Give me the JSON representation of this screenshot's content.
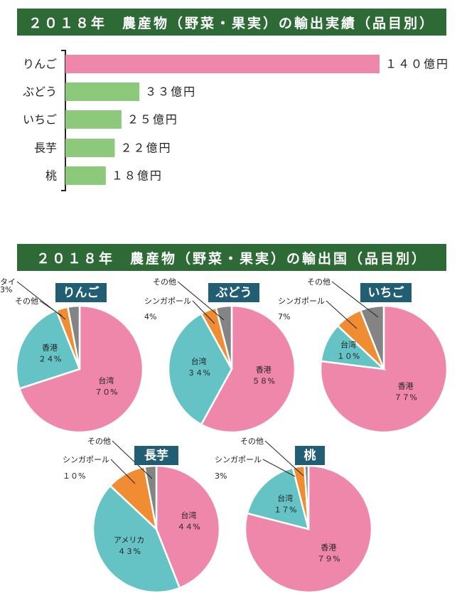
{
  "bar_title": "２０１８年　農産物（野菜・果実）の輸出実績（品目別）",
  "pie_title": "２０１８年　農産物（野菜・果実）の輸出国（品目別）",
  "colors": {
    "banner": "#2e6a35",
    "bar": "#8cc97a",
    "bar_top": "#ee87a9",
    "pink": "#ee87a9",
    "teal": "#65c3c6",
    "orange": "#f08c32",
    "gray": "#848484",
    "chip": "#215e74"
  },
  "chart_data": [
    {
      "type": "bar",
      "orientation": "horizontal",
      "categories": [
        "りんご",
        "ぶどう",
        "いちご",
        "長芋",
        "桃"
      ],
      "values": [
        140,
        33,
        25,
        22,
        18
      ],
      "value_labels": [
        "１４０億円",
        "３３億円",
        "２５億円",
        "２２億円",
        "１８億円"
      ],
      "unit": "億円"
    },
    {
      "type": "pie",
      "title": "りんご",
      "slices": [
        {
          "label": "台湾",
          "value": 70,
          "pct": "７０%",
          "color": "pink",
          "inside": true
        },
        {
          "label": "香港",
          "value": 24,
          "pct": "２４%",
          "color": "teal",
          "inside": true
        },
        {
          "label": "タイ",
          "value": 3,
          "pct": "3%",
          "color": "orange",
          "inside": false
        },
        {
          "label": "その他",
          "value": 3,
          "pct": "",
          "color": "gray",
          "inside": false
        }
      ]
    },
    {
      "type": "pie",
      "title": "ぶどう",
      "slices": [
        {
          "label": "香港",
          "value": 58,
          "pct": "５８%",
          "color": "pink",
          "inside": true
        },
        {
          "label": "台湾",
          "value": 34,
          "pct": "３４%",
          "color": "teal",
          "inside": true
        },
        {
          "label": "シンガポール",
          "value": 4,
          "pct": "4%",
          "color": "orange",
          "inside": false
        },
        {
          "label": "その他",
          "value": 4,
          "pct": "",
          "color": "gray",
          "inside": false
        }
      ]
    },
    {
      "type": "pie",
      "title": "いちご",
      "slices": [
        {
          "label": "香港",
          "value": 77,
          "pct": "７７%",
          "color": "pink",
          "inside": true
        },
        {
          "label": "台湾",
          "value": 10,
          "pct": "１０%",
          "color": "teal",
          "inside": true
        },
        {
          "label": "シンガポール",
          "value": 7,
          "pct": "7%",
          "color": "orange",
          "inside": false
        },
        {
          "label": "その他",
          "value": 6,
          "pct": "",
          "color": "gray",
          "inside": false
        }
      ]
    },
    {
      "type": "pie",
      "title": "長芋",
      "slices": [
        {
          "label": "台湾",
          "value": 44,
          "pct": "４４%",
          "color": "pink",
          "inside": true
        },
        {
          "label": "アメリカ",
          "value": 43,
          "pct": "４３%",
          "color": "teal",
          "inside": true
        },
        {
          "label": "シンガポール",
          "value": 10,
          "pct": "１０%",
          "color": "orange",
          "inside": false
        },
        {
          "label": "その他",
          "value": 3,
          "pct": "",
          "color": "gray",
          "inside": false
        }
      ]
    },
    {
      "type": "pie",
      "title": "桃",
      "slices": [
        {
          "label": "香港",
          "value": 79,
          "pct": "７９%",
          "color": "pink",
          "inside": true
        },
        {
          "label": "台湾",
          "value": 17,
          "pct": "１７%",
          "color": "teal",
          "inside": true
        },
        {
          "label": "シンガポール",
          "value": 3,
          "pct": "3%",
          "color": "orange",
          "inside": false
        },
        {
          "label": "その他",
          "value": 1,
          "pct": "",
          "color": "gray",
          "inside": false
        }
      ]
    }
  ]
}
